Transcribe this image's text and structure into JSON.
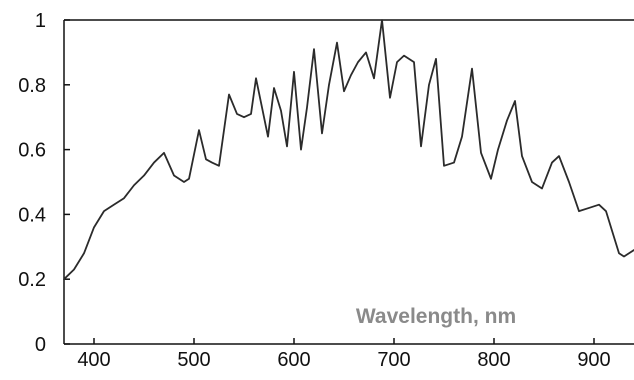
{
  "chart_data": {
    "type": "line",
    "title": "",
    "xlabel": "Wavelength, nm",
    "ylabel": "",
    "xlim": [
      370,
      940
    ],
    "ylim": [
      0,
      1
    ],
    "x_ticks": [
      400,
      500,
      600,
      700,
      800,
      900
    ],
    "y_ticks": [
      0,
      0.2,
      0.4,
      0.6,
      0.8,
      1
    ],
    "x_tick_labels": [
      "400",
      "500",
      "600",
      "700",
      "800",
      "900"
    ],
    "y_tick_labels": [
      "0",
      "0.2",
      "0.4",
      "0.6",
      "0.8",
      "1"
    ],
    "grid": false,
    "legend": "none",
    "line_color": "#2b2b2b",
    "series": [
      {
        "x": [
          370,
          380,
          390,
          400,
          410,
          420,
          430,
          440,
          450,
          460,
          470,
          480,
          490,
          495,
          505,
          512,
          518,
          525,
          535,
          543,
          550,
          557,
          562,
          568,
          574,
          580,
          587,
          593,
          600,
          607,
          613,
          620,
          628,
          635,
          643,
          650,
          657,
          664,
          672,
          680,
          688,
          696,
          703,
          710,
          720,
          727,
          735,
          742,
          750,
          760,
          768,
          778,
          787,
          797,
          804,
          813,
          821,
          828,
          838,
          848,
          858,
          865,
          875,
          885,
          895,
          905,
          912,
          918,
          925,
          930,
          935,
          940
        ],
        "y": [
          0.2,
          0.23,
          0.28,
          0.36,
          0.41,
          0.43,
          0.45,
          0.49,
          0.52,
          0.56,
          0.59,
          0.52,
          0.5,
          0.51,
          0.66,
          0.57,
          0.56,
          0.55,
          0.77,
          0.71,
          0.7,
          0.71,
          0.82,
          0.73,
          0.64,
          0.79,
          0.72,
          0.61,
          0.84,
          0.6,
          0.73,
          0.91,
          0.65,
          0.8,
          0.93,
          0.78,
          0.83,
          0.87,
          0.9,
          0.82,
          1.0,
          0.76,
          0.87,
          0.89,
          0.87,
          0.61,
          0.8,
          0.88,
          0.55,
          0.56,
          0.64,
          0.85,
          0.59,
          0.51,
          0.6,
          0.69,
          0.75,
          0.58,
          0.5,
          0.48,
          0.56,
          0.58,
          0.5,
          0.41,
          0.42,
          0.43,
          0.41,
          0.35,
          0.28,
          0.27,
          0.28,
          0.29
        ]
      }
    ]
  }
}
